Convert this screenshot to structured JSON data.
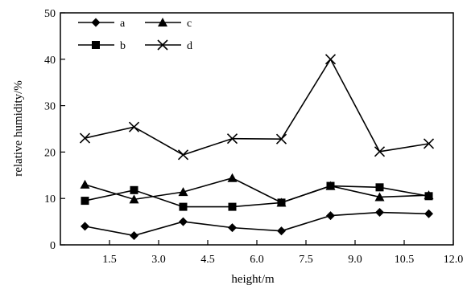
{
  "chart_data": {
    "type": "line",
    "title": "",
    "xlabel": "height/m",
    "ylabel": "relative humidity/%",
    "xlim": [
      0,
      12.0
    ],
    "ylim": [
      0,
      50
    ],
    "x": [
      0.75,
      2.25,
      3.75,
      5.25,
      6.75,
      8.25,
      9.75,
      11.25
    ],
    "xticks": [
      1.5,
      3.0,
      4.5,
      6.0,
      7.5,
      9.0,
      10.5,
      12.0
    ],
    "xtick_labels": [
      "1.5",
      "3.0",
      "4.5",
      "6.0",
      "7.5",
      "9.0",
      "10.5",
      "12.0"
    ],
    "yticks": [
      0,
      10,
      20,
      30,
      40,
      50
    ],
    "ytick_labels": [
      "0",
      "10",
      "20",
      "30",
      "40",
      "50"
    ],
    "grid": false,
    "legend_position": "top-left",
    "series": [
      {
        "name": "a",
        "marker": "diamond",
        "values": [
          4.0,
          2.0,
          5.0,
          3.7,
          3.0,
          6.3,
          7.0,
          6.7
        ]
      },
      {
        "name": "b",
        "marker": "square",
        "values": [
          9.5,
          11.8,
          8.2,
          8.2,
          9.1,
          12.7,
          12.4,
          10.5
        ]
      },
      {
        "name": "c",
        "marker": "triangle",
        "values": [
          13.0,
          9.8,
          11.4,
          14.4,
          9.1,
          12.7,
          10.3,
          10.7
        ]
      },
      {
        "name": "d",
        "marker": "x",
        "values": [
          23.0,
          25.4,
          19.4,
          22.9,
          22.8,
          40.0,
          20.1,
          21.8
        ]
      }
    ]
  }
}
